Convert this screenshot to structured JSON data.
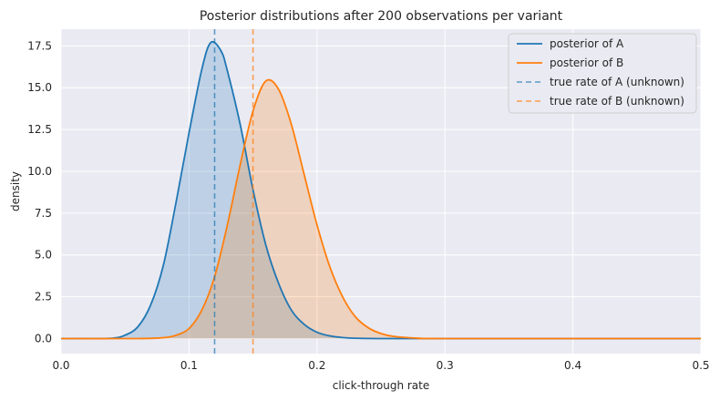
{
  "chart_data": {
    "type": "line",
    "title": "Posterior distributions after 200 observations per variant",
    "xlabel": "click-through rate",
    "ylabel": "density",
    "xlim": [
      0.0,
      0.5
    ],
    "ylim": [
      -0.9,
      18.5
    ],
    "xticks": [
      0.0,
      0.1,
      0.2,
      0.3,
      0.4,
      0.5
    ],
    "xtick_labels": [
      "0.0",
      "0.1",
      "0.2",
      "0.3",
      "0.4",
      "0.5"
    ],
    "yticks": [
      0.0,
      2.5,
      5.0,
      7.5,
      10.0,
      12.5,
      15.0,
      17.5
    ],
    "ytick_labels": [
      "0.0",
      "2.5",
      "5.0",
      "7.5",
      "10.0",
      "12.5",
      "15.0",
      "17.5"
    ],
    "grid": true,
    "legend_position": "top-right",
    "series": [
      {
        "name": "posterior of A",
        "color": "#1f77b4",
        "style": "solid",
        "fill": true,
        "x": [
          0.0,
          0.02,
          0.04,
          0.05,
          0.06,
          0.07,
          0.08,
          0.09,
          0.1,
          0.11,
          0.117,
          0.125,
          0.13,
          0.14,
          0.15,
          0.16,
          0.17,
          0.18,
          0.19,
          0.2,
          0.21,
          0.22,
          0.23,
          0.25,
          0.27,
          0.3,
          0.5
        ],
        "y": [
          0.0,
          0.0,
          0.02,
          0.2,
          0.7,
          2.0,
          4.4,
          8.2,
          12.3,
          16.1,
          17.7,
          17.2,
          16.0,
          12.8,
          8.9,
          5.6,
          3.3,
          1.7,
          0.85,
          0.38,
          0.16,
          0.06,
          0.02,
          0.0,
          0.0,
          0.0,
          0.0
        ]
      },
      {
        "name": "posterior of B",
        "color": "#ff7f0e",
        "style": "solid",
        "fill": true,
        "x": [
          0.0,
          0.06,
          0.08,
          0.09,
          0.1,
          0.11,
          0.12,
          0.13,
          0.14,
          0.15,
          0.16,
          0.17,
          0.18,
          0.19,
          0.2,
          0.21,
          0.22,
          0.23,
          0.24,
          0.25,
          0.26,
          0.28,
          0.3,
          0.5
        ],
        "y": [
          0.0,
          0.0,
          0.05,
          0.2,
          0.6,
          1.7,
          3.7,
          6.8,
          10.4,
          13.6,
          15.4,
          14.9,
          12.8,
          9.8,
          6.8,
          4.3,
          2.5,
          1.3,
          0.65,
          0.3,
          0.13,
          0.02,
          0.0,
          0.0
        ]
      },
      {
        "name": "true rate of A (unknown)",
        "color": "#1f77b4",
        "style": "dashed",
        "vline": 0.12
      },
      {
        "name": "true rate of B (unknown)",
        "color": "#ff7f0e",
        "style": "dashed",
        "vline": 0.15
      }
    ]
  },
  "colors": {
    "background": "#ffffff",
    "plot_background": "#eaeaf2",
    "grid": "#ffffff",
    "text": "#262626"
  }
}
